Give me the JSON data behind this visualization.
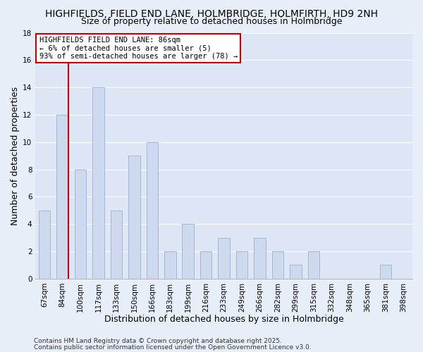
{
  "title": "HIGHFIELDS, FIELD END LANE, HOLMBRIDGE, HOLMFIRTH, HD9 2NH",
  "subtitle": "Size of property relative to detached houses in Holmbridge",
  "xlabel": "Distribution of detached houses by size in Holmbridge",
  "ylabel": "Number of detached properties",
  "categories": [
    "67sqm",
    "84sqm",
    "100sqm",
    "117sqm",
    "133sqm",
    "150sqm",
    "166sqm",
    "183sqm",
    "199sqm",
    "216sqm",
    "233sqm",
    "249sqm",
    "266sqm",
    "282sqm",
    "299sqm",
    "315sqm",
    "332sqm",
    "348sqm",
    "365sqm",
    "381sqm",
    "398sqm"
  ],
  "values": [
    5,
    12,
    8,
    14,
    5,
    9,
    10,
    2,
    4,
    2,
    3,
    2,
    3,
    2,
    1,
    2,
    0,
    0,
    0,
    1,
    0
  ],
  "bar_color": "#ccd9ee",
  "bar_edge_color": "#9ab0cc",
  "highlight_index": 1,
  "highlight_line_color": "#cc0000",
  "ylim": [
    0,
    18
  ],
  "yticks": [
    0,
    2,
    4,
    6,
    8,
    10,
    12,
    14,
    16,
    18
  ],
  "annotation_text": "HIGHFIELDS FIELD END LANE: 86sqm\n← 6% of detached houses are smaller (5)\n93% of semi-detached houses are larger (78) →",
  "annotation_box_color": "#ffffff",
  "annotation_box_edge": "#cc0000",
  "footer1": "Contains HM Land Registry data © Crown copyright and database right 2025.",
  "footer2": "Contains public sector information licensed under the Open Government Licence v3.0.",
  "background_color": "#e8eef8",
  "plot_bg_color": "#dce6f5",
  "grid_color": "#ffffff",
  "title_fontsize": 10,
  "subtitle_fontsize": 9,
  "axis_label_fontsize": 9,
  "tick_fontsize": 7.5,
  "annotation_fontsize": 7.5,
  "footer_fontsize": 6.5
}
